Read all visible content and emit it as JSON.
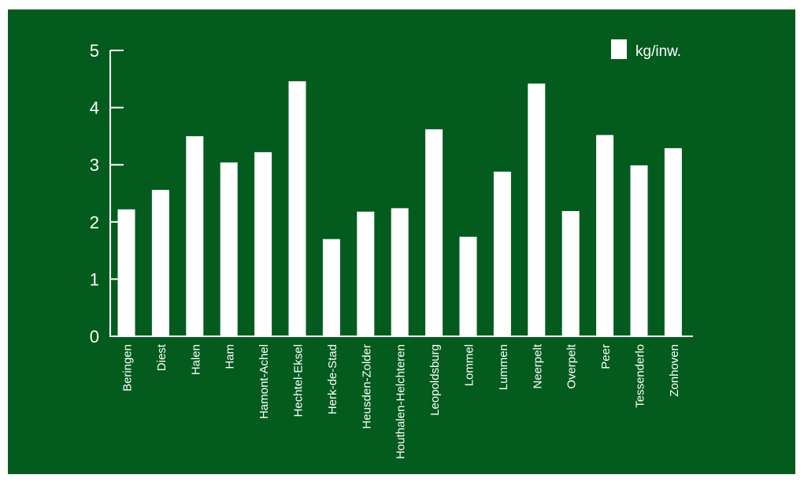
{
  "chart_data": {
    "type": "bar",
    "categories": [
      "Beringen",
      "Diest",
      "Halen",
      "Ham",
      "Hamont-Achel",
      "Hechtel-Eksel",
      "Herk-de-Stad",
      "Heusden-Zolder",
      "Houthalen-Helchteren",
      "Leopoldsburg",
      "Lommel",
      "Lummen",
      "Neerpelt",
      "Overpelt",
      "Peer",
      "Tessenderlo",
      "Zonhoven"
    ],
    "series": [
      {
        "name": "kg/inw.",
        "values": [
          2.22,
          2.56,
          3.5,
          3.04,
          3.22,
          4.46,
          1.7,
          2.18,
          2.24,
          3.62,
          1.74,
          2.88,
          4.42,
          2.19,
          3.52,
          2.99,
          3.29
        ]
      }
    ],
    "yticks": [
      0,
      1,
      2,
      3,
      4,
      5
    ],
    "ylim": [
      0,
      5
    ],
    "title": "",
    "xlabel": "",
    "ylabel": "",
    "legend_position": "top-right",
    "colors": {
      "background": "#035c1e",
      "bars": "#ffffff",
      "axis": "#ffffff",
      "text": "#ffffff"
    }
  }
}
